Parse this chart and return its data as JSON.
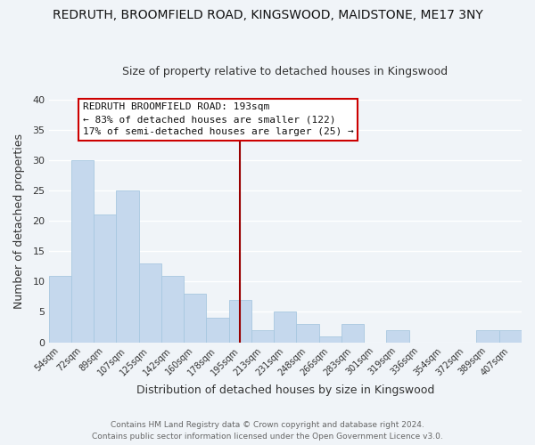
{
  "title": "REDRUTH, BROOMFIELD ROAD, KINGSWOOD, MAIDSTONE, ME17 3NY",
  "subtitle": "Size of property relative to detached houses in Kingswood",
  "xlabel": "Distribution of detached houses by size in Kingswood",
  "ylabel": "Number of detached properties",
  "bar_color": "#c5d8ed",
  "bar_edge_color": "#a8c8e0",
  "background_color": "#f0f4f8",
  "grid_color": "white",
  "categories": [
    "54sqm",
    "72sqm",
    "89sqm",
    "107sqm",
    "125sqm",
    "142sqm",
    "160sqm",
    "178sqm",
    "195sqm",
    "213sqm",
    "231sqm",
    "248sqm",
    "266sqm",
    "283sqm",
    "301sqm",
    "319sqm",
    "336sqm",
    "354sqm",
    "372sqm",
    "389sqm",
    "407sqm"
  ],
  "values": [
    11,
    30,
    21,
    25,
    13,
    11,
    8,
    4,
    7,
    2,
    5,
    3,
    1,
    3,
    0,
    2,
    0,
    0,
    0,
    2,
    2
  ],
  "ylim": [
    0,
    40
  ],
  "yticks": [
    0,
    5,
    10,
    15,
    20,
    25,
    30,
    35,
    40
  ],
  "vline_index": 8,
  "vline_color": "#990000",
  "annotation_title": "REDRUTH BROOMFIELD ROAD: 193sqm",
  "annotation_line1": "← 83% of detached houses are smaller (122)",
  "annotation_line2": "17% of semi-detached houses are larger (25) →",
  "annotation_box_color": "white",
  "annotation_box_edge": "#cc0000",
  "footer_line1": "Contains HM Land Registry data © Crown copyright and database right 2024.",
  "footer_line2": "Contains public sector information licensed under the Open Government Licence v3.0."
}
